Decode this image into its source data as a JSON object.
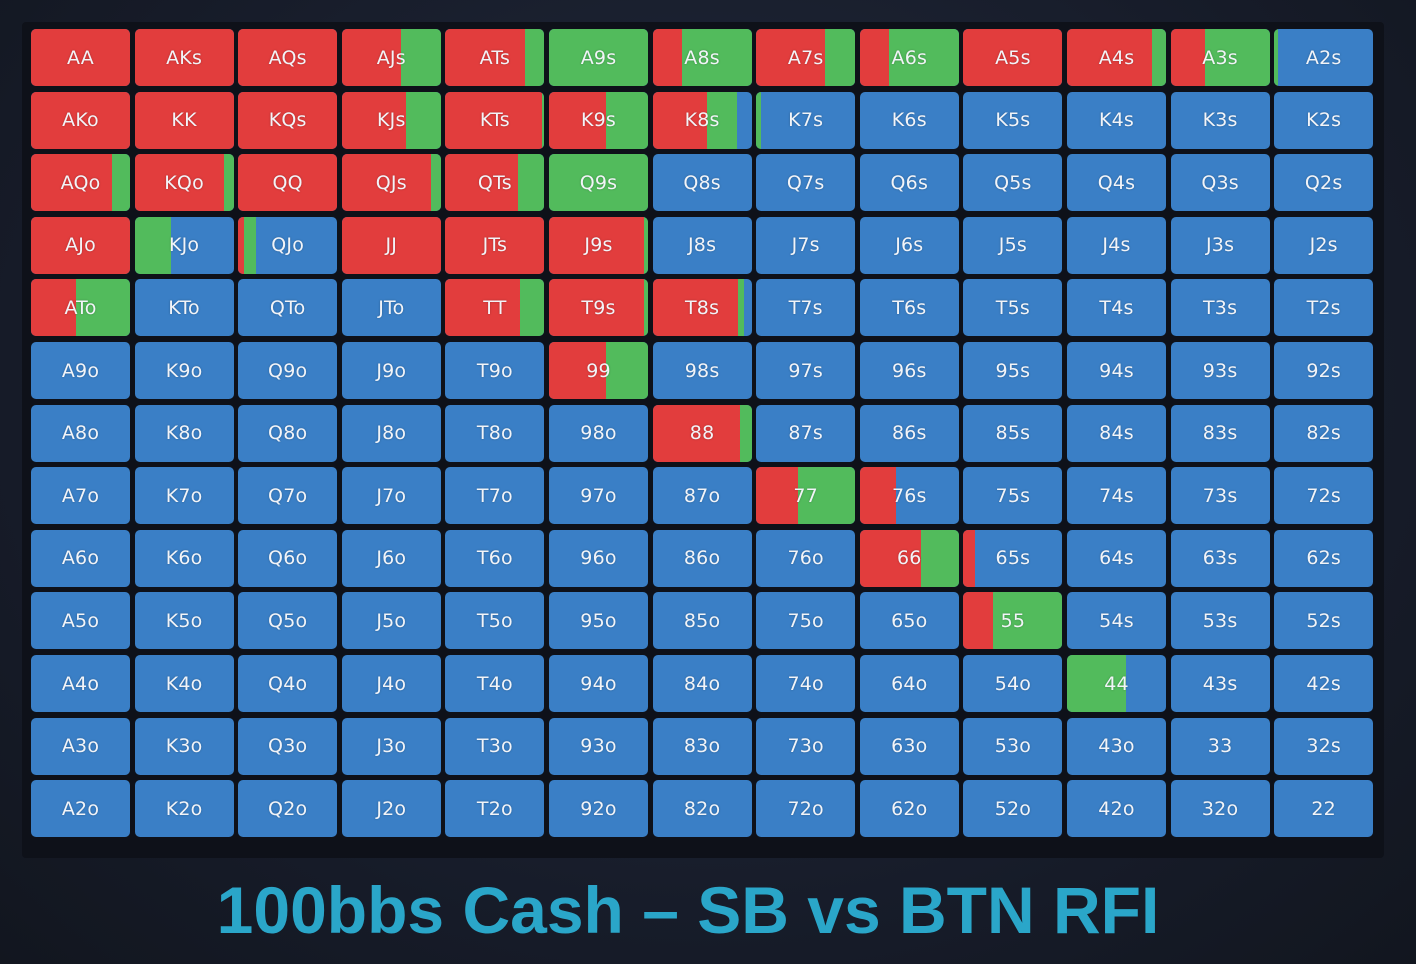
{
  "chart_data": {
    "type": "heatmap",
    "title": "100bbs Cash – SB vs BTN RFI",
    "colors": {
      "raise": "#e23d3d",
      "call": "#52bb5c",
      "fold": "#3a7fc6"
    },
    "rows": [
      [
        "AA",
        "AKs",
        "AQs",
        "AJs",
        "ATs",
        "A9s",
        "A8s",
        "A7s",
        "A6s",
        "A5s",
        "A4s",
        "A3s",
        "A2s"
      ],
      [
        "AKo",
        "KK",
        "KQs",
        "KJs",
        "KTs",
        "K9s",
        "K8s",
        "K7s",
        "K6s",
        "K5s",
        "K4s",
        "K3s",
        "K2s"
      ],
      [
        "AQo",
        "KQo",
        "QQ",
        "QJs",
        "QTs",
        "Q9s",
        "Q8s",
        "Q7s",
        "Q6s",
        "Q5s",
        "Q4s",
        "Q3s",
        "Q2s"
      ],
      [
        "AJo",
        "KJo",
        "QJo",
        "JJ",
        "JTs",
        "J9s",
        "J8s",
        "J7s",
        "J6s",
        "J5s",
        "J4s",
        "J3s",
        "J2s"
      ],
      [
        "ATo",
        "KTo",
        "QTo",
        "JTo",
        "TT",
        "T9s",
        "T8s",
        "T7s",
        "T6s",
        "T5s",
        "T4s",
        "T3s",
        "T2s"
      ],
      [
        "A9o",
        "K9o",
        "Q9o",
        "J9o",
        "T9o",
        "99",
        "98s",
        "97s",
        "96s",
        "95s",
        "94s",
        "93s",
        "92s"
      ],
      [
        "A8o",
        "K8o",
        "Q8o",
        "J8o",
        "T8o",
        "98o",
        "88",
        "87s",
        "86s",
        "85s",
        "84s",
        "83s",
        "82s"
      ],
      [
        "A7o",
        "K7o",
        "Q7o",
        "J7o",
        "T7o",
        "97o",
        "87o",
        "77",
        "76s",
        "75s",
        "74s",
        "73s",
        "72s"
      ],
      [
        "A6o",
        "K6o",
        "Q6o",
        "J6o",
        "T6o",
        "96o",
        "86o",
        "76o",
        "66",
        "65s",
        "64s",
        "63s",
        "62s"
      ],
      [
        "A5o",
        "K5o",
        "Q5o",
        "J5o",
        "T5o",
        "95o",
        "85o",
        "75o",
        "65o",
        "55",
        "54s",
        "53s",
        "52s"
      ],
      [
        "A4o",
        "K4o",
        "Q4o",
        "J4o",
        "T4o",
        "94o",
        "84o",
        "74o",
        "64o",
        "54o",
        "44",
        "43s",
        "42s"
      ],
      [
        "A3o",
        "K3o",
        "Q3o",
        "J3o",
        "T3o",
        "93o",
        "83o",
        "73o",
        "63o",
        "53o",
        "43o",
        "33",
        "32s"
      ],
      [
        "A2o",
        "K2o",
        "Q2o",
        "J2o",
        "T2o",
        "92o",
        "82o",
        "72o",
        "62o",
        "52o",
        "42o",
        "32o",
        "22"
      ]
    ],
    "frequencies": {
      "AA": [
        1,
        0
      ],
      "AKs": [
        1,
        0
      ],
      "AQs": [
        1,
        0
      ],
      "AJs": [
        0.6,
        0.4
      ],
      "ATs": [
        0.8,
        0.2
      ],
      "A9s": [
        0,
        1
      ],
      "A8s": [
        0.3,
        0.7
      ],
      "A7s": [
        0.7,
        0.3
      ],
      "A6s": [
        0.3,
        0.7
      ],
      "A5s": [
        1,
        0
      ],
      "A4s": [
        0.86,
        0.14
      ],
      "A3s": [
        0.35,
        0.65
      ],
      "A2s": [
        0,
        0.04
      ],
      "AKo": [
        1,
        0
      ],
      "KK": [
        1,
        0
      ],
      "KQs": [
        1,
        0
      ],
      "KJs": [
        0.65,
        0.35
      ],
      "KTs": [
        0.98,
        0.02
      ],
      "K9s": [
        0.58,
        0.42
      ],
      "K8s": [
        0.55,
        0.3
      ],
      "K7s": [
        0,
        0.05
      ],
      "AQo": [
        0.82,
        0.18
      ],
      "KQo": [
        0.9,
        0.1
      ],
      "QQ": [
        1,
        0
      ],
      "QJs": [
        0.9,
        0.1
      ],
      "QTs": [
        0.73,
        0.27
      ],
      "Q9s": [
        0,
        1
      ],
      "AJo": [
        1,
        0
      ],
      "KJo": [
        0,
        0.37
      ],
      "QJo": [
        0.06,
        0.12
      ],
      "JJ": [
        1,
        0
      ],
      "JTs": [
        1,
        0
      ],
      "J9s": [
        0.96,
        0.04
      ],
      "ATo": [
        0.45,
        0.55
      ],
      "TT": [
        0.75,
        0.25
      ],
      "T9s": [
        0.96,
        0.04
      ],
      "T8s": [
        0.86,
        0.06
      ],
      "99": [
        0.58,
        0.42
      ],
      "88": [
        0.88,
        0.12
      ],
      "77": [
        0.42,
        0.58
      ],
      "76s": [
        0.37,
        0
      ],
      "66": [
        0.62,
        0.38
      ],
      "65s": [
        0.12,
        0
      ],
      "55": [
        0.3,
        0.7
      ],
      "44": [
        0,
        0.6
      ]
    }
  }
}
